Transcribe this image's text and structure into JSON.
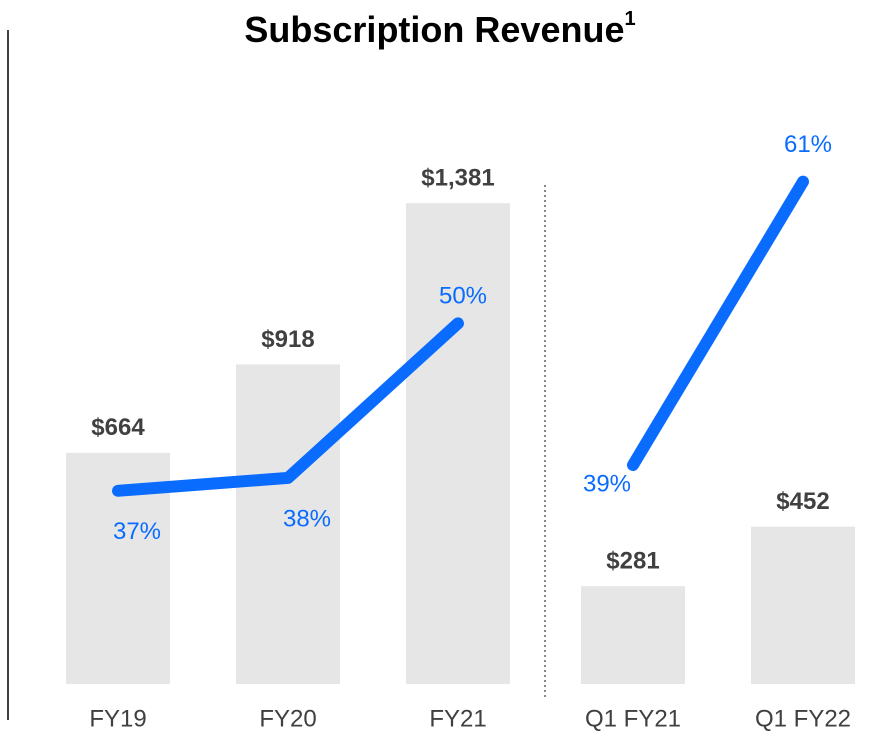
{
  "chart_data": {
    "type": "bar",
    "title": "Subscription Revenue",
    "title_note": "1",
    "categories": [
      "FY19",
      "FY20",
      "FY21",
      "Q1 FY21",
      "Q1 FY22"
    ],
    "values": [
      664,
      918,
      1381,
      281,
      452
    ],
    "value_labels": [
      "$664",
      "$918",
      "$1,381",
      "$281",
      "$452"
    ],
    "color": "#e6e6e6",
    "ylim": [
      0,
      1850
    ],
    "y2lim": [
      22,
      72
    ],
    "series": [
      {
        "type": "line",
        "axis": "y2",
        "color": "#0a6cff",
        "values": [
          37,
          38,
          50,
          null,
          null
        ],
        "value_labels": [
          "37%",
          "38%",
          "50%",
          null,
          null
        ]
      },
      {
        "type": "line",
        "axis": "y2",
        "color": "#0a6cff",
        "values": [
          null,
          null,
          null,
          39,
          61
        ],
        "value_labels": [
          null,
          null,
          null,
          "39%",
          "61%"
        ]
      }
    ]
  }
}
